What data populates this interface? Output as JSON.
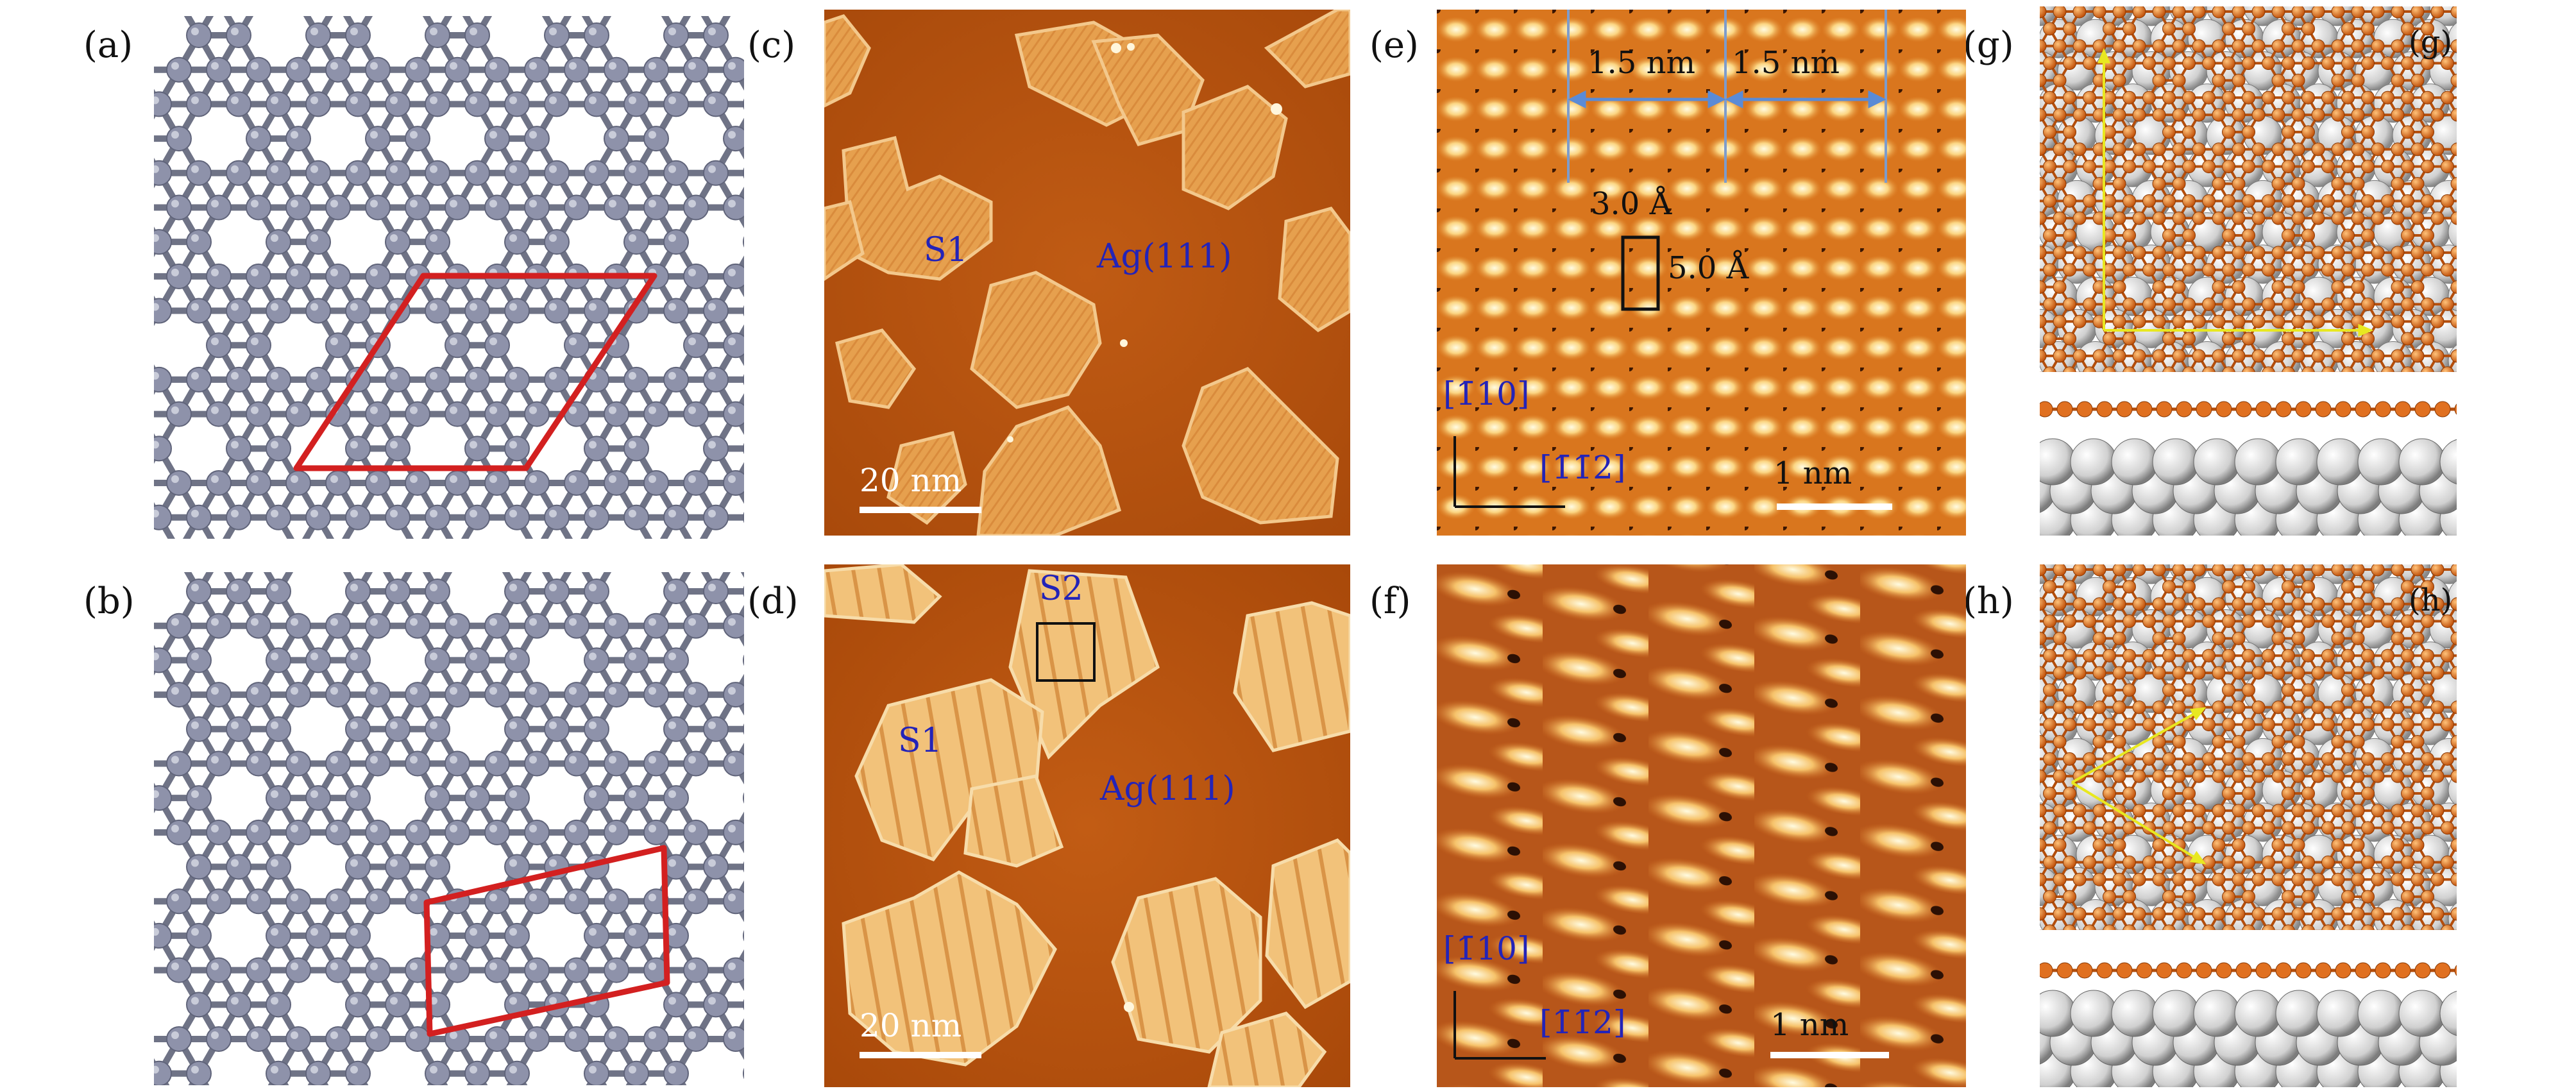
{
  "figure": {
    "panel_labels": {
      "a": "(a)",
      "b": "(b)",
      "c": "(c)",
      "d": "(d)",
      "e": "(e)",
      "f": "(f)",
      "g": "(g)",
      "h": "(h)"
    },
    "panel_c": {
      "s1": "S1",
      "substrate": "Ag(111)",
      "scale": "20 nm"
    },
    "panel_d": {
      "s1": "S1",
      "s2": "S2",
      "substrate": "Ag(111)",
      "scale": "20 nm"
    },
    "panel_e": {
      "period_left": "1.5 nm",
      "period_right": "1.5 nm",
      "cell_a": "3.0 Å",
      "cell_b": "5.0 Å",
      "dir_vertical": "[1̄10]",
      "dir_horizontal": "[1̄1̄2]",
      "scale": "1 nm"
    },
    "panel_f": {
      "dir_vertical": "[1̄10]",
      "dir_horizontal": "[1̄1̄2]",
      "scale": "1 nm"
    },
    "panel_g": {
      "inset_label": "(g)"
    },
    "panel_h": {
      "inset_label": "(h)"
    },
    "colors": {
      "lattice_atom": "#8e92aa",
      "unit_cell": "#d32020",
      "stm_bg": "#b7530f",
      "island": "#e8a553",
      "boron": "#e07020",
      "silver": "#d0d0d0",
      "arrow": "#e8e820"
    }
  }
}
